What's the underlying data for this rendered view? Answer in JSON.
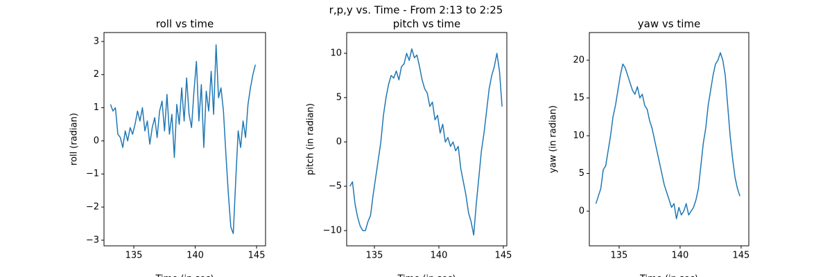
{
  "title": "r,p,y vs. Time - From 2:13 to 2:25",
  "chart_data": [
    {
      "type": "line",
      "title": "roll vs time",
      "x_label": "Time (in sec)",
      "y_label": "roll (radian)",
      "x": [
        133.1,
        133.3,
        133.5,
        133.7,
        133.9,
        134.1,
        134.3,
        134.5,
        134.7,
        134.9,
        135.1,
        135.3,
        135.5,
        135.7,
        135.9,
        136.1,
        136.3,
        136.5,
        136.7,
        136.9,
        137.1,
        137.3,
        137.5,
        137.7,
        137.9,
        138.1,
        138.3,
        138.5,
        138.7,
        138.9,
        139.1,
        139.3,
        139.5,
        139.7,
        139.9,
        140.1,
        140.3,
        140.5,
        140.7,
        140.9,
        141.1,
        141.3,
        141.5,
        141.7,
        141.9,
        142.1,
        142.3,
        142.5,
        142.7,
        142.9,
        143.1,
        143.3,
        143.5,
        143.7,
        143.9,
        144.1,
        144.3,
        144.5,
        144.7,
        144.9
      ],
      "series": [
        {
          "color": "#1f77b4",
          "values": [
            1.1,
            0.9,
            1.0,
            0.2,
            0.1,
            -0.2,
            0.3,
            0.0,
            0.4,
            0.2,
            0.5,
            0.9,
            0.6,
            1.0,
            0.3,
            0.6,
            -0.1,
            0.4,
            0.7,
            0.1,
            0.9,
            1.2,
            0.3,
            1.4,
            0.2,
            0.8,
            -0.5,
            1.1,
            0.5,
            1.6,
            0.6,
            1.9,
            0.8,
            0.4,
            1.5,
            2.4,
            0.6,
            1.7,
            -0.2,
            1.5,
            0.9,
            2.1,
            0.8,
            2.9,
            1.3,
            1.6,
            0.9,
            -0.4,
            -1.6,
            -2.6,
            -2.8,
            -1.2,
            0.3,
            -0.2,
            0.6,
            0.1,
            1.1,
            1.6,
            2.0,
            2.3
          ]
        }
      ],
      "xlim": [
        132.57,
        145.73
      ],
      "ylim": [
        -3.17,
        3.27
      ],
      "xticks": [
        135,
        140,
        145
      ],
      "yticks": [
        {
          "value": -3,
          "label": "−3"
        },
        {
          "value": -2,
          "label": "−2"
        },
        {
          "value": -1,
          "label": "−1"
        },
        0,
        1,
        2,
        3
      ]
    },
    {
      "type": "line",
      "title": "pitch vs time",
      "x_label": "Time (in sec)",
      "y_label": "pitch (in radian)",
      "x": [
        133.1,
        133.3,
        133.5,
        133.7,
        133.9,
        134.1,
        134.3,
        134.5,
        134.7,
        134.9,
        135.1,
        135.3,
        135.5,
        135.7,
        135.9,
        136.1,
        136.3,
        136.5,
        136.7,
        136.9,
        137.1,
        137.3,
        137.5,
        137.7,
        137.9,
        138.1,
        138.3,
        138.5,
        138.7,
        138.9,
        139.1,
        139.3,
        139.5,
        139.7,
        139.9,
        140.1,
        140.3,
        140.5,
        140.7,
        140.9,
        141.1,
        141.3,
        141.5,
        141.7,
        141.9,
        142.1,
        142.3,
        142.5,
        142.7,
        142.9,
        143.1,
        143.3,
        143.5,
        143.7,
        143.9,
        144.1,
        144.3,
        144.5,
        144.7,
        144.9
      ],
      "series": [
        {
          "color": "#1f77b4",
          "values": [
            -5,
            -4.5,
            -7,
            -8.5,
            -9.5,
            -10,
            -10,
            -9,
            -8.3,
            -6,
            -4,
            -2,
            0,
            3,
            5,
            6.5,
            7.5,
            7.2,
            8,
            7,
            8.5,
            8.8,
            10,
            9.2,
            10.5,
            9.5,
            9.8,
            8.5,
            7,
            6,
            5.5,
            4,
            4.5,
            2.5,
            3,
            1,
            2,
            0,
            0.5,
            -0.5,
            0,
            -1,
            -0.5,
            -3,
            -4.5,
            -6,
            -8,
            -9,
            -10.5,
            -7,
            -4,
            -1,
            1,
            3.5,
            6,
            7.5,
            8.5,
            10,
            8,
            4
          ]
        }
      ],
      "xlim": [
        132.85,
        145.27
      ],
      "ylim": [
        -11.72,
        12.34
      ],
      "xticks": [
        135,
        140,
        145
      ],
      "yticks": [
        {
          "value": -10,
          "label": "−10"
        },
        {
          "value": -5,
          "label": "−5"
        },
        0,
        5,
        10
      ]
    },
    {
      "type": "line",
      "title": "yaw vs time",
      "x_label": "Time (in sec)",
      "y_label": "yaw (in radian)",
      "x": [
        133.1,
        133.3,
        133.5,
        133.7,
        133.9,
        134.1,
        134.3,
        134.5,
        134.7,
        134.9,
        135.1,
        135.3,
        135.5,
        135.7,
        135.9,
        136.1,
        136.3,
        136.5,
        136.7,
        136.9,
        137.1,
        137.3,
        137.5,
        137.7,
        137.9,
        138.1,
        138.3,
        138.5,
        138.7,
        138.9,
        139.1,
        139.3,
        139.5,
        139.7,
        139.9,
        140.1,
        140.3,
        140.5,
        140.7,
        140.9,
        141.1,
        141.3,
        141.5,
        141.7,
        141.9,
        142.1,
        142.3,
        142.5,
        142.7,
        142.9,
        143.1,
        143.3,
        143.5,
        143.7,
        143.9,
        144.1,
        144.3,
        144.5,
        144.7,
        144.9
      ],
      "series": [
        {
          "color": "#1f77b4",
          "values": [
            1,
            2,
            3,
            5.5,
            6,
            8,
            10,
            12.5,
            14,
            16,
            18,
            19.5,
            19,
            18,
            17,
            16,
            15.5,
            16.5,
            15,
            15.5,
            14,
            13.5,
            12,
            11,
            9.5,
            8,
            6.5,
            5,
            3.5,
            2.5,
            1.5,
            0.5,
            1,
            -1,
            0.5,
            -0.5,
            0,
            1,
            -0.5,
            0,
            0.5,
            1.5,
            3,
            6,
            9,
            11,
            14,
            16,
            18,
            19.5,
            20,
            21,
            20,
            18,
            14,
            10,
            7,
            4.5,
            3,
            2
          ]
        }
      ],
      "xlim": [
        132.56,
        145.63
      ],
      "ylim": [
        -4.59,
        23.67
      ],
      "xticks": [
        135,
        140,
        145
      ],
      "yticks": [
        0,
        5,
        10,
        15,
        20
      ]
    }
  ]
}
